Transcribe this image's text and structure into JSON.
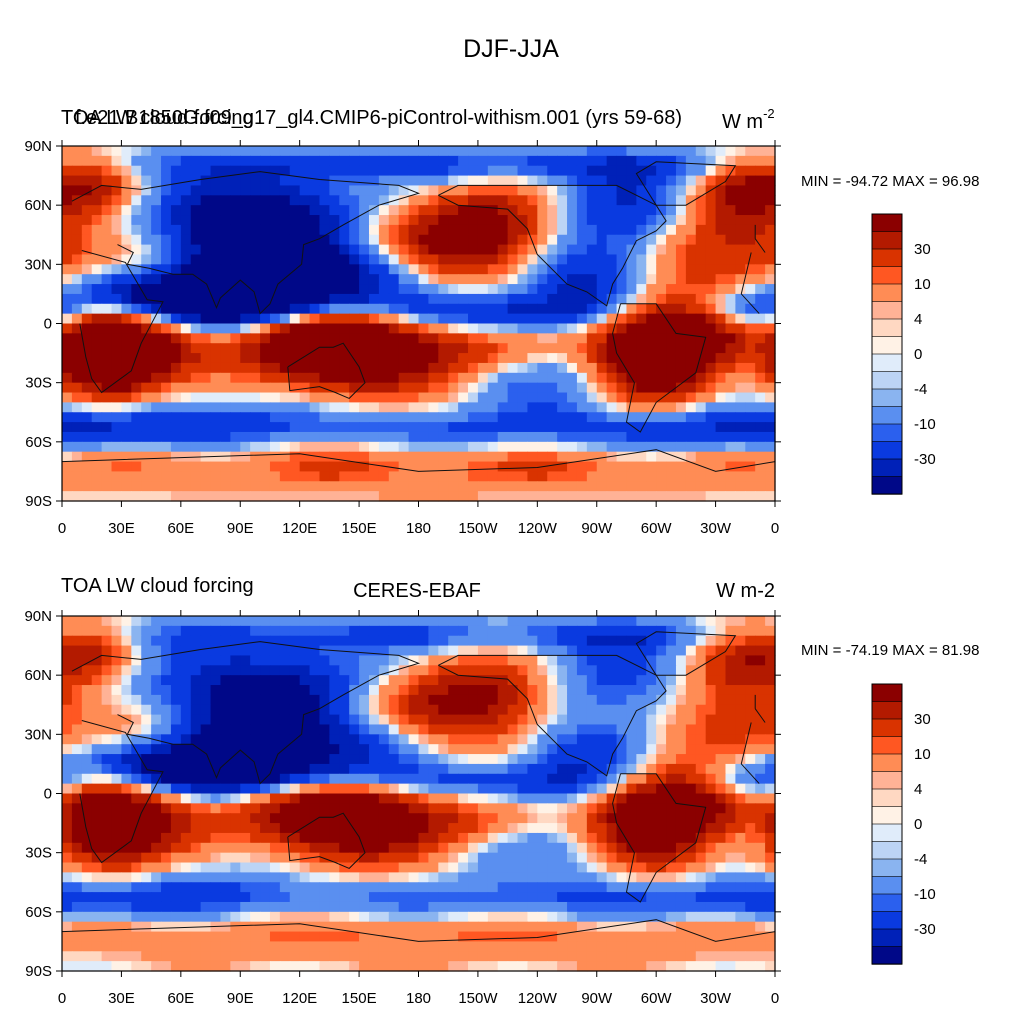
{
  "figure": {
    "title": "DJF-JJA"
  },
  "panels": [
    {
      "left_title": "TOA LW cloud forcing",
      "overlap_title": "f.e21.B1850G.f09_g17_gl4.CMIP6-piControl-withism.001 (yrs 59-68)",
      "units_base": "W m",
      "units_sup": "-2",
      "stats": "MIN = -94.72 MAX =  96.98",
      "legend_labels": [
        "30",
        "10",
        "4",
        "0",
        "-4",
        "-10",
        "-30"
      ]
    },
    {
      "left_title": "TOA LW cloud forcing",
      "center_title": "CERES-EBAF",
      "units": "W m-2",
      "stats": "MIN = -74.19 MAX =  81.98",
      "legend_labels": [
        "30",
        "10",
        "4",
        "0",
        "-4",
        "-10",
        "-30"
      ]
    }
  ],
  "colors": {
    "scale": [
      "#8b0000",
      "#b31a00",
      "#d93300",
      "#ff5722",
      "#ff8c55",
      "#ffb296",
      "#ffd8c2",
      "#fff2e6",
      "#e0ecfa",
      "#bcd4f5",
      "#8ab4f0",
      "#5a8ff0",
      "#2b60ee",
      "#0a3ae0",
      "#0021b8",
      "#000888"
    ]
  },
  "chart_data": [
    {
      "type": "heatmap",
      "title": "f.e21.B1850G.f09_g17_gl4.CMIP6-piControl-withism.001 (yrs 59-68)",
      "variable": "TOA LW cloud forcing",
      "units": "W m-2",
      "min": -94.72,
      "max": 96.98,
      "contour_levels": [
        -40,
        -30,
        -20,
        -15,
        -10,
        -6,
        -4,
        -2,
        0,
        2,
        4,
        6,
        10,
        15,
        20,
        30,
        40
      ],
      "x_tick_labels": [
        "0",
        "30E",
        "60E",
        "90E",
        "120E",
        "150E",
        "180",
        "150W",
        "120W",
        "90W",
        "60W",
        "30W",
        "0"
      ],
      "y_tick_labels": [
        "90N",
        "60N",
        "30N",
        "0",
        "30S",
        "60S",
        "90S"
      ],
      "xlim": [
        0,
        360
      ],
      "ylim": [
        -90,
        90
      ]
    },
    {
      "type": "heatmap",
      "title": "CERES-EBAF",
      "variable": "TOA LW cloud forcing",
      "units": "W m-2",
      "min": -74.19,
      "max": 81.98,
      "contour_levels": [
        -40,
        -30,
        -20,
        -15,
        -10,
        -6,
        -4,
        -2,
        0,
        2,
        4,
        6,
        10,
        15,
        20,
        30,
        40
      ],
      "x_tick_labels": [
        "0",
        "30E",
        "60E",
        "90E",
        "120E",
        "150E",
        "180",
        "150W",
        "120W",
        "90W",
        "60W",
        "30W",
        "0"
      ],
      "y_tick_labels": [
        "90N",
        "60N",
        "30N",
        "0",
        "30S",
        "60S",
        "90S"
      ],
      "xlim": [
        0,
        360
      ],
      "ylim": [
        -90,
        90
      ]
    }
  ]
}
